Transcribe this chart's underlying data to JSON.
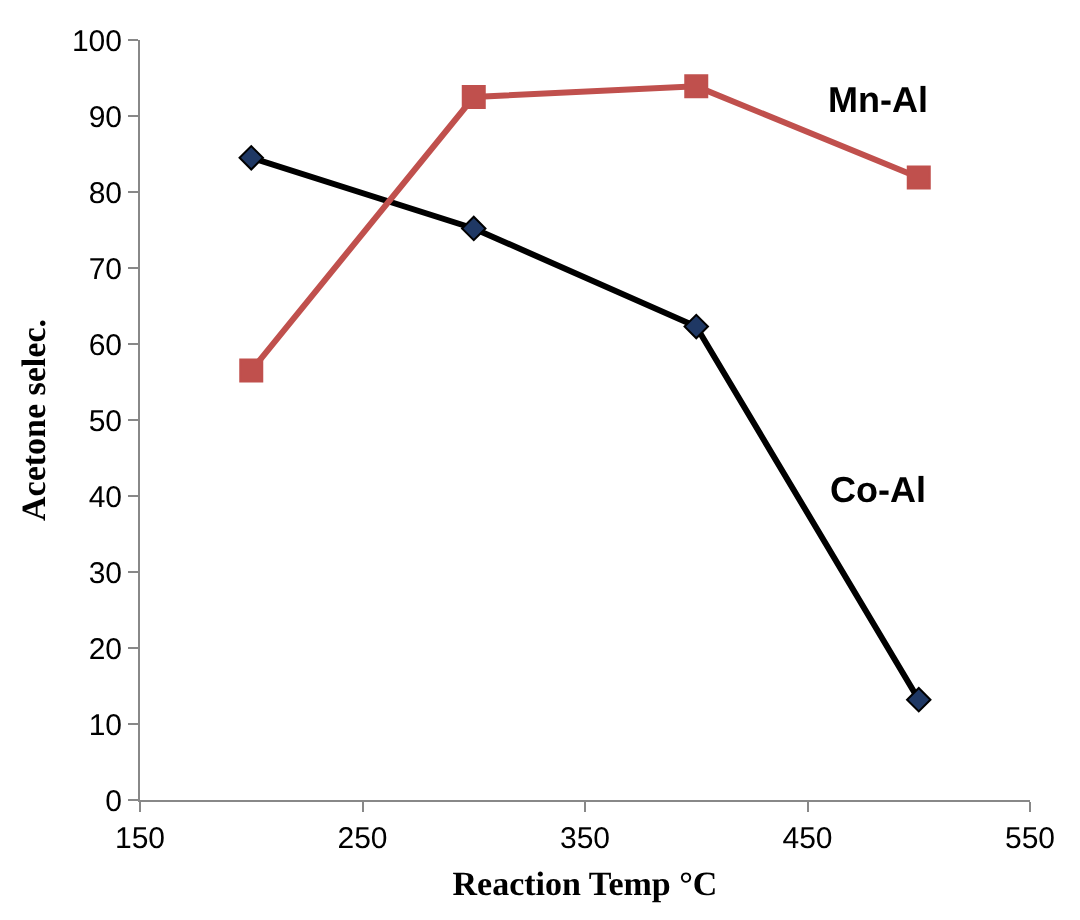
{
  "chart_data": {
    "type": "line",
    "xlabel": "Reaction Temp °C",
    "ylabel": "Acetone selec.",
    "x": [
      200,
      300,
      400,
      500
    ],
    "series": [
      {
        "name": "Co-Al",
        "color": "#000000",
        "colors": [
          "#1f3864",
          "#1f3864",
          "#1f3864",
          "#1f3864"
        ],
        "marker": "diamond",
        "values": [
          84.5,
          75.2,
          62.3,
          13.2
        ]
      },
      {
        "name": "Mn-Al",
        "color": "#c0504d",
        "marker": "square",
        "values": [
          56.5,
          92.5,
          93.9,
          81.9
        ]
      }
    ],
    "xlim": [
      150,
      550
    ],
    "xticks": [
      150,
      250,
      350,
      450,
      550
    ],
    "ylim": [
      0,
      100
    ],
    "yticks": [
      0,
      10,
      20,
      30,
      40,
      50,
      60,
      70,
      80,
      90,
      100
    ],
    "legend": false,
    "line_style": "solid"
  }
}
